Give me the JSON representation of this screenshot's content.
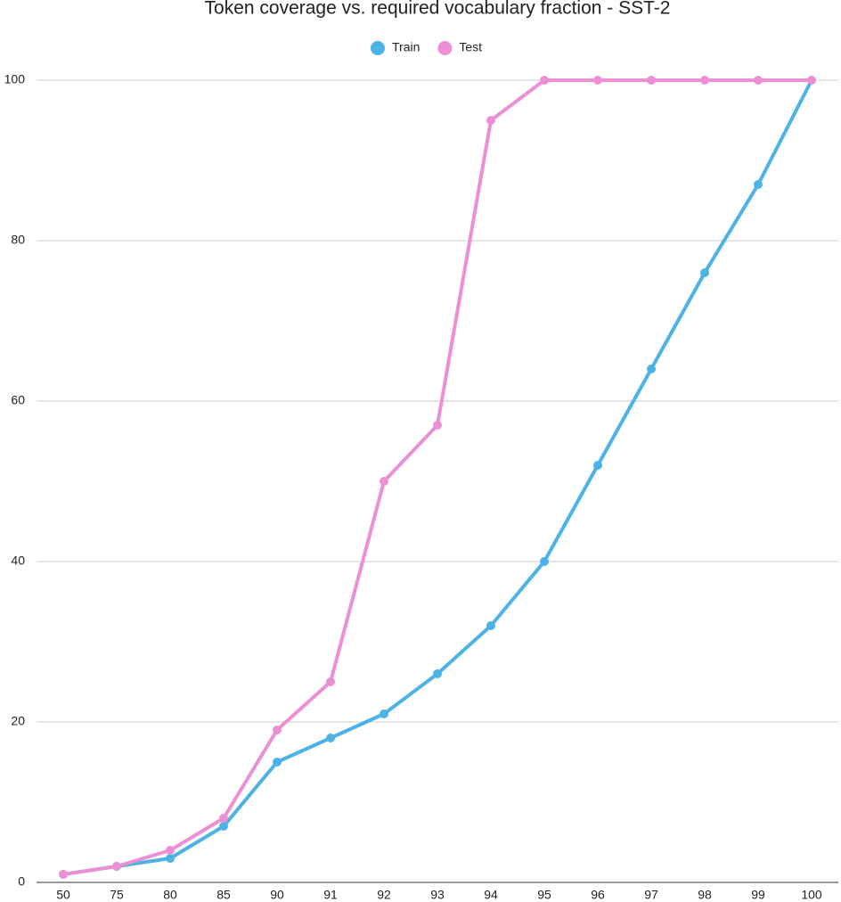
{
  "chart_data": {
    "type": "line",
    "title": "Token coverage vs. required vocabulary fraction - SST-2",
    "categories": [
      "50",
      "75",
      "80",
      "85",
      "90",
      "91",
      "92",
      "93",
      "94",
      "95",
      "96",
      "97",
      "98",
      "99",
      "100"
    ],
    "series": [
      {
        "name": "Train",
        "color": "#4db3e6",
        "values": [
          1,
          2,
          3,
          7,
          15,
          18,
          21,
          26,
          32,
          40,
          52,
          64,
          76,
          87,
          100
        ]
      },
      {
        "name": "Test",
        "color": "#ec8fd5",
        "values": [
          1,
          2,
          4,
          8,
          19,
          25,
          50,
          57,
          95,
          100,
          100,
          100,
          100,
          100,
          100
        ]
      }
    ],
    "ylim": [
      0,
      100
    ],
    "yticks": [
      0,
      20,
      40,
      60,
      80,
      100
    ],
    "grid": true,
    "legend": "top"
  }
}
